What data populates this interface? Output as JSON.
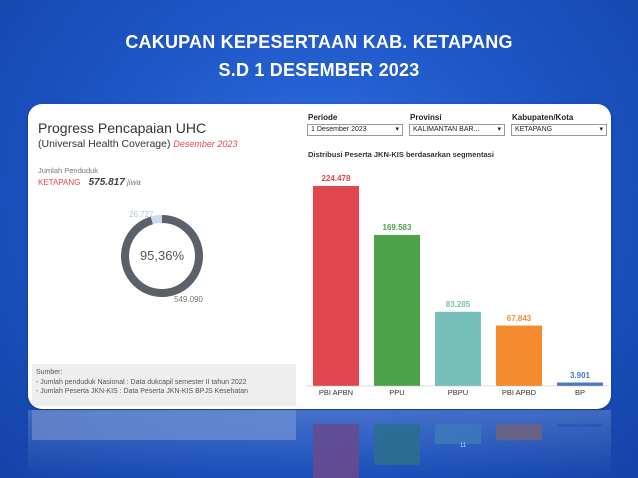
{
  "slide": {
    "title_line1": "CAKUPAN KEPESERTAAN  KAB. KETAPANG",
    "title_line2": "S.D 1 DESEMBER 2023"
  },
  "uhc": {
    "title": "Progress Pencapaian UHC",
    "subtitle": "(Universal Health Coverage)",
    "date": "Desember 2023",
    "population_label": "Jumlah Penduduk",
    "region": "KETAPANG",
    "population": "575.817",
    "population_unit": "jiwa",
    "percentage": "95,36%",
    "percentage_value": 95.36,
    "uncovered": "26.727",
    "covered": "549.090",
    "colors": {
      "covered": "#5b6168",
      "uncovered": "#c8dced"
    }
  },
  "source": {
    "heading": "Sumber:",
    "line1": "- Jumlah penduduk Nasional : Data dukcapil semester II tahun 2022",
    "line2": "- Jumlah Peserta JKN-KIS : Data Peserta JKN-KIS BPJS Kesehatan"
  },
  "filters": {
    "periode": {
      "label": "Periode",
      "value": "1 Desember 2023"
    },
    "provinsi": {
      "label": "Provinsi",
      "value": "KALIMANTAN BAR..."
    },
    "kabupaten": {
      "label": "Kabupaten/Kota",
      "value": "KETAPANG"
    }
  },
  "chart_data": {
    "type": "bar",
    "title": "Distribusi Peserta JKN-KIS berdasarkan segmentasi",
    "categories": [
      "PBI APBN",
      "PPU",
      "PBPU",
      "PBI APBD",
      "BP"
    ],
    "values": [
      224478,
      169583,
      83285,
      67843,
      3901
    ],
    "value_labels": [
      "224.478",
      "169.583",
      "83.285",
      "67.843",
      "3.901"
    ],
    "colors": [
      "#e0474c",
      "#4ea24a",
      "#79bfb9",
      "#f48c2f",
      "#4a78c6"
    ],
    "label_colors": [
      "#e0474c",
      "#4ea24a",
      "#79bfb9",
      "#f48c2f",
      "#4a78c6"
    ],
    "ylim": [
      0,
      224478
    ]
  },
  "page_number": "11"
}
